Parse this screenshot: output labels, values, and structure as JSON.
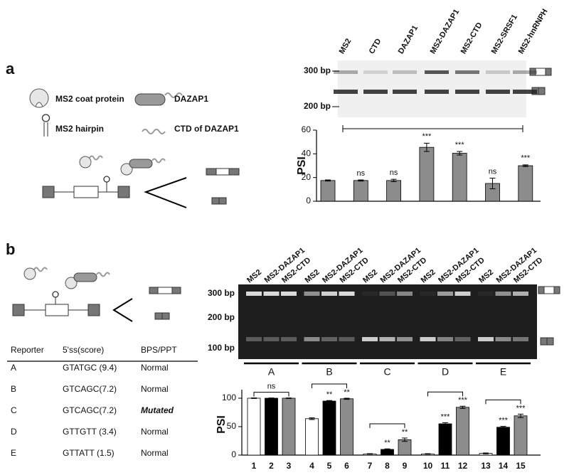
{
  "panel_a": {
    "label": "a",
    "legend": [
      "MS2 coat protein",
      "DAZAP1",
      "MS2 hairpin",
      "CTD of DAZAP1"
    ],
    "gel": {
      "lanes": [
        "MS2",
        "CTD",
        "DAZAP1",
        "MS2-DAZAP1",
        "MS2-CTD",
        "MS2-SRSF1",
        "MS2-hnRNPH"
      ],
      "markers": [
        "300 bp",
        "200 bp"
      ]
    }
  },
  "panel_b": {
    "label": "b",
    "gel": {
      "lanes": [
        "MS2",
        "MS2-DAZAP1",
        "MS2-CTD",
        "MS2",
        "MS2-DAZAP1",
        "MS2-CTD",
        "MS2",
        "MS2-DAZAP1",
        "MS2-CTD",
        "MS2",
        "MS2-DAZAP1",
        "MS2-CTD",
        "MS2",
        "MS2-DAZAP1",
        "MS2-CTD"
      ],
      "markers": [
        "300 bp",
        "200 bp",
        "100 bp"
      ]
    },
    "groups": [
      "A",
      "B",
      "C",
      "D",
      "E"
    ],
    "table": {
      "header": [
        "Reporter",
        "5'ss(score)",
        "BPS/PPT"
      ],
      "rows": [
        [
          "A",
          "GTATGC (9.4)",
          "Normal"
        ],
        [
          "B",
          "GTCAGC(7.2)",
          "Normal"
        ],
        [
          "C",
          "GTCAGC(7.2)",
          "Mutated"
        ],
        [
          "D",
          "GTTGTT (3.4)",
          "Normal"
        ],
        [
          "E",
          "GTTATT (1.5)",
          "Normal"
        ]
      ]
    }
  },
  "chart_data": [
    {
      "type": "bar",
      "y_label": "PSI",
      "categories": [
        null,
        null,
        null,
        null,
        null,
        null,
        null
      ],
      "values": [
        17.5,
        17.5,
        17.5,
        45.5,
        40.5,
        15,
        30
      ],
      "errors": [
        0.5,
        0.5,
        1,
        3.5,
        1.5,
        4.5,
        0.7
      ],
      "significance": [
        null,
        "ns",
        "ns",
        "***",
        "***",
        "ns",
        "***"
      ],
      "color": "#8c8c8c",
      "ylim": [
        0,
        60
      ],
      "yticks": [
        0,
        20,
        40,
        60
      ]
    },
    {
      "type": "bar",
      "y_label": "PSI",
      "categories": [
        "1",
        "2",
        "3",
        "4",
        "5",
        "6",
        "7",
        "8",
        "9",
        "10",
        "11",
        "12",
        "13",
        "14",
        "15"
      ],
      "values": [
        100,
        100,
        100,
        64,
        95,
        99,
        2,
        10,
        27,
        2,
        55,
        84,
        3,
        49,
        69
      ],
      "errors": [
        0.5,
        0.5,
        0.5,
        1.5,
        1,
        1,
        0.5,
        1,
        3,
        0.5,
        2,
        2,
        0.8,
        1.5,
        3
      ],
      "significance": [
        null,
        "ns",
        null,
        null,
        "**",
        "**",
        null,
        "**",
        "**",
        null,
        "***",
        "***",
        null,
        "***",
        "***"
      ],
      "colors": [
        "#ffffff",
        "#000000",
        "#8c8c8c"
      ],
      "ylim": [
        0,
        115
      ],
      "yticks": [
        0,
        50,
        100
      ]
    }
  ]
}
